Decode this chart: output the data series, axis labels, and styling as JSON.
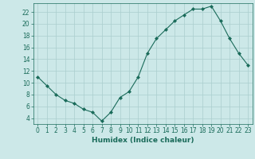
{
  "x": [
    0,
    1,
    2,
    3,
    4,
    5,
    6,
    7,
    8,
    9,
    10,
    11,
    12,
    13,
    14,
    15,
    16,
    17,
    18,
    19,
    20,
    21,
    22,
    23
  ],
  "y": [
    11,
    9.5,
    8,
    7,
    6.5,
    5.5,
    5,
    3.5,
    5,
    7.5,
    8.5,
    11,
    15,
    17.5,
    19,
    20.5,
    21.5,
    22.5,
    22.5,
    23,
    20.5,
    17.5,
    15,
    13
  ],
  "xlabel": "Humidex (Indice chaleur)",
  "xlim": [
    -0.5,
    23.5
  ],
  "ylim": [
    3,
    23.5
  ],
  "yticks": [
    4,
    6,
    8,
    10,
    12,
    14,
    16,
    18,
    20,
    22
  ],
  "xticks": [
    0,
    1,
    2,
    3,
    4,
    5,
    6,
    7,
    8,
    9,
    10,
    11,
    12,
    13,
    14,
    15,
    16,
    17,
    18,
    19,
    20,
    21,
    22,
    23
  ],
  "line_color": "#1a6b5a",
  "marker": "D",
  "marker_size": 2.0,
  "bg_color": "#cce8e8",
  "grid_color": "#aacece",
  "label_fontsize": 6.5,
  "tick_fontsize": 5.5
}
